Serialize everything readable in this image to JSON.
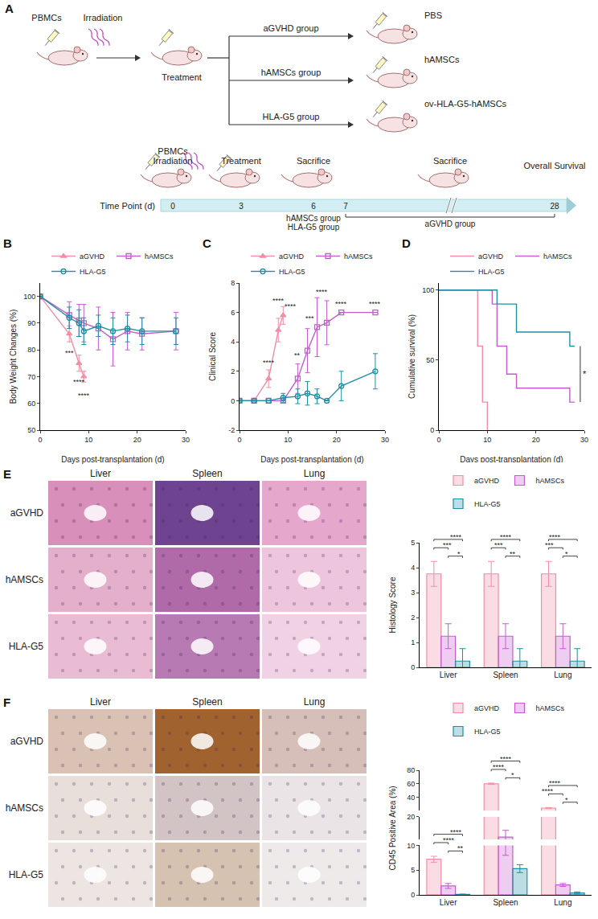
{
  "diagram": {
    "panel": "A",
    "start": [
      "PBMCs",
      "Irradiation"
    ],
    "treatment": "Treatment",
    "groups": [
      {
        "name": "aGVHD group",
        "agent": "PBS"
      },
      {
        "name": "hAMSCs group",
        "agent": "hAMSCs"
      },
      {
        "name": "HLA-G5 group",
        "agent": "ov-HLA-G5-hAMSCs"
      }
    ],
    "timeline": {
      "label": "Time Point (d)",
      "ticks": [
        0,
        3,
        6,
        7,
        28
      ],
      "above": [
        {
          "tick": 0,
          "texts": [
            "PBMCs",
            "Irradiation"
          ]
        },
        {
          "tick": 3,
          "texts": [
            "Treatment"
          ]
        },
        {
          "tick": 6,
          "texts": [
            "Sacrifice"
          ]
        },
        {
          "span": [
            7,
            28
          ],
          "texts": [
            "Sacrifice"
          ]
        },
        {
          "tick": 28,
          "texts": [
            "Overall Survival"
          ]
        }
      ],
      "below": [
        {
          "tick": 6,
          "texts": [
            "hAMSCs group",
            "HLA-G5 group"
          ]
        },
        {
          "span": [
            7,
            28
          ],
          "texts": [
            "aGVHD group"
          ]
        }
      ]
    }
  },
  "chart_data": [
    {
      "panel": "B",
      "type": "line",
      "xlabel": "Days post-transplantation (d)",
      "ylabel": "Body Weight Changes (%)",
      "xlim": [
        0,
        30
      ],
      "xticks": [
        0,
        10,
        20,
        30
      ],
      "ylim": [
        50,
        105
      ],
      "yticks": [
        50,
        60,
        70,
        80,
        90,
        100
      ],
      "grid": false,
      "legend": "top",
      "series": [
        {
          "name": "aGVHD",
          "color": "#f08ea4",
          "marker": "triangle",
          "x": [
            0,
            6,
            8,
            9
          ],
          "values": [
            100,
            86,
            75,
            70
          ],
          "errors": [
            0,
            3,
            3,
            2
          ]
        },
        {
          "name": "hAMSCs",
          "color": "#c45ccf",
          "marker": "square",
          "x": [
            0,
            6,
            8,
            9,
            12,
            15,
            18,
            21,
            28
          ],
          "values": [
            100,
            93,
            91,
            90,
            88,
            84,
            87,
            86,
            87
          ],
          "errors": [
            0,
            5,
            6,
            7,
            8,
            10,
            7,
            6,
            7
          ]
        },
        {
          "name": "HLA-G5",
          "color": "#1f8fa3",
          "marker": "circle",
          "x": [
            0,
            6,
            8,
            9,
            12,
            15,
            18,
            21,
            28
          ],
          "values": [
            100,
            92,
            90,
            87,
            89,
            87,
            88,
            87,
            87
          ],
          "errors": [
            0,
            4,
            5,
            5,
            4,
            5,
            5,
            5,
            5
          ]
        }
      ],
      "annotations": [
        {
          "x": 6,
          "y": 79,
          "text": "***"
        },
        {
          "x": 8,
          "y": 68,
          "text": "****"
        },
        {
          "x": 9,
          "y": 63,
          "text": "****"
        }
      ]
    },
    {
      "panel": "C",
      "type": "line",
      "xlabel": "Days post-transplantation (d)",
      "ylabel": "Clinical Score",
      "xlim": [
        0,
        30
      ],
      "xticks": [
        0,
        10,
        20,
        30
      ],
      "ylim": [
        -2,
        8
      ],
      "yticks": [
        -2,
        0,
        2,
        4,
        6,
        8
      ],
      "grid": false,
      "legend": "top",
      "series": [
        {
          "name": "aGVHD",
          "color": "#f08ea4",
          "marker": "triangle",
          "x": [
            0,
            3,
            6,
            8,
            9
          ],
          "values": [
            0,
            0,
            1.5,
            4.8,
            5.8
          ],
          "errors": [
            0,
            0,
            0.6,
            0.8,
            0.6
          ]
        },
        {
          "name": "hAMSCs",
          "color": "#c45ccf",
          "marker": "square",
          "x": [
            0,
            3,
            6,
            9,
            12,
            14,
            16,
            18,
            21,
            28
          ],
          "values": [
            0,
            0,
            0,
            0,
            1.5,
            3.4,
            5,
            5.3,
            6,
            6
          ],
          "errors": [
            0,
            0,
            0,
            0,
            1,
            1.5,
            2,
            1.5,
            0,
            0
          ]
        },
        {
          "name": "HLA-G5",
          "color": "#1f8fa3",
          "marker": "circle",
          "x": [
            0,
            3,
            6,
            9,
            12,
            14,
            16,
            18,
            21,
            28
          ],
          "values": [
            0,
            0,
            0,
            0.2,
            0.3,
            0.5,
            0.3,
            0,
            1,
            2
          ],
          "errors": [
            0,
            0,
            0,
            0.3,
            0.5,
            0.8,
            0.5,
            0,
            1,
            1.2
          ]
        }
      ],
      "annotations": [
        {
          "x": 6,
          "y": 2.6,
          "text": "****"
        },
        {
          "x": 8,
          "y": 6.8,
          "text": "****"
        },
        {
          "x": 10.5,
          "y": 6.4,
          "text": "****"
        },
        {
          "x": 12,
          "y": 3.1,
          "text": "**"
        },
        {
          "x": 14.5,
          "y": 5.6,
          "text": "***"
        },
        {
          "x": 17,
          "y": 7.4,
          "text": "****"
        },
        {
          "x": 21,
          "y": 6.6,
          "text": "****"
        },
        {
          "x": 28,
          "y": 6.6,
          "text": "****"
        }
      ]
    },
    {
      "panel": "D",
      "type": "step",
      "xlabel": "Days post-transplantation (d)",
      "ylabel": "Cumulative survival (%)",
      "xlim": [
        0,
        30
      ],
      "xticks": [
        0,
        10,
        20,
        30
      ],
      "ylim": [
        0,
        105
      ],
      "yticks": [
        0,
        50,
        100
      ],
      "grid": false,
      "legend": "top",
      "series": [
        {
          "name": "aGVHD",
          "color": "#f08ea4",
          "x": [
            0,
            8,
            9,
            10
          ],
          "values": [
            100,
            60,
            20,
            0
          ]
        },
        {
          "name": "hAMSCs",
          "color": "#c45ccf",
          "x": [
            0,
            11,
            12,
            14,
            16,
            27,
            28
          ],
          "values": [
            100,
            90,
            60,
            40,
            30,
            20,
            20
          ]
        },
        {
          "name": "HLA-G5",
          "color": "#1f8fa3",
          "x": [
            0,
            12,
            16,
            27,
            28
          ],
          "values": [
            100,
            90,
            70,
            60,
            60
          ]
        }
      ],
      "comparisons": [
        {
          "series": [
            "hAMSCs",
            "HLA-G5"
          ],
          "text": "*"
        }
      ]
    },
    {
      "type": "bar",
      "ylabel": "Histology Score",
      "categories": [
        "Liver",
        "Spleen",
        "Lung"
      ],
      "ylim": [
        0,
        5
      ],
      "yticks": [
        0,
        1,
        2,
        3,
        4,
        5
      ],
      "grid": false,
      "legend": "top",
      "series": [
        {
          "name": "aGVHD",
          "color": "#f08ea4",
          "values": [
            3.75,
            3.75,
            3.75
          ],
          "errors": [
            0.5,
            0.5,
            0.5
          ]
        },
        {
          "name": "hAMSCs",
          "color": "#c45ccf",
          "values": [
            1.25,
            1.25,
            1.25
          ],
          "errors": [
            0.5,
            0.5,
            0.5
          ]
        },
        {
          "name": "HLA-G5",
          "color": "#1f8fa3",
          "values": [
            0.25,
            0.25,
            0.25
          ],
          "errors": [
            0.5,
            0.5,
            0.5
          ]
        }
      ],
      "comparisons": [
        {
          "category": "Liver",
          "pair": [
            "aGVHD",
            "HLA-G5"
          ],
          "text": "****"
        },
        {
          "category": "Liver",
          "pair": [
            "aGVHD",
            "hAMSCs"
          ],
          "text": "***"
        },
        {
          "category": "Liver",
          "pair": [
            "hAMSCs",
            "HLA-G5"
          ],
          "text": "*"
        },
        {
          "category": "Spleen",
          "pair": [
            "aGVHD",
            "HLA-G5"
          ],
          "text": "****"
        },
        {
          "category": "Spleen",
          "pair": [
            "aGVHD",
            "hAMSCs"
          ],
          "text": "***"
        },
        {
          "category": "Spleen",
          "pair": [
            "hAMSCs",
            "HLA-G5"
          ],
          "text": "**"
        },
        {
          "category": "Lung",
          "pair": [
            "aGVHD",
            "HLA-G5"
          ],
          "text": "****"
        },
        {
          "category": "Lung",
          "pair": [
            "aGVHD",
            "hAMSCs"
          ],
          "text": "***"
        },
        {
          "category": "Lung",
          "pair": [
            "hAMSCs",
            "HLA-G5"
          ],
          "text": "*"
        }
      ]
    },
    {
      "type": "bar",
      "ylabel": "CD45 Positive Area (%)",
      "categories": [
        "Liver",
        "Spleen",
        "Lung"
      ],
      "y_segments": [
        {
          "ylim": [
            0,
            10
          ],
          "yticks": [
            0,
            5,
            10
          ]
        },
        {
          "ylim": [
            10,
            20
          ],
          "yticks": [
            20
          ]
        },
        {
          "ylim": [
            20,
            80
          ],
          "yticks": [
            40,
            60,
            80
          ]
        }
      ],
      "grid": false,
      "legend": "top",
      "series": [
        {
          "name": "aGVHD",
          "color": "#f08ea4",
          "values": [
            7.2,
            60,
            24
          ],
          "errors": [
            0.6,
            1,
            0.8
          ]
        },
        {
          "name": "hAMSCs",
          "color": "#c45ccf",
          "values": [
            1.8,
            11,
            2
          ],
          "errors": [
            0.5,
            3,
            0.3
          ]
        },
        {
          "name": "HLA-G5",
          "color": "#1f8fa3",
          "values": [
            0.1,
            5.3,
            0.4
          ],
          "errors": [
            0.05,
            0.8,
            0.2
          ]
        }
      ],
      "comparisons": [
        {
          "category": "Liver",
          "pair": [
            "aGVHD",
            "HLA-G5"
          ],
          "text": "****"
        },
        {
          "category": "Liver",
          "pair": [
            "aGVHD",
            "hAMSCs"
          ],
          "text": "****"
        },
        {
          "category": "Liver",
          "pair": [
            "hAMSCs",
            "HLA-G5"
          ],
          "text": "**"
        },
        {
          "category": "Spleen",
          "pair": [
            "aGVHD",
            "HLA-G5"
          ],
          "text": "****"
        },
        {
          "category": "Spleen",
          "pair": [
            "aGVHD",
            "hAMSCs"
          ],
          "text": "****"
        },
        {
          "category": "Spleen",
          "pair": [
            "hAMSCs",
            "HLA-G5"
          ],
          "text": "*"
        },
        {
          "category": "Lung",
          "pair": [
            "aGVHD",
            "HLA-G5"
          ],
          "text": "****"
        },
        {
          "category": "Lung",
          "pair": [
            "aGVHD",
            "hAMSCs"
          ],
          "text": "****"
        },
        {
          "category": "Lung",
          "pair": [
            "hAMSCs",
            "HLA-G5"
          ],
          "text": "*"
        }
      ]
    }
  ],
  "image_grids": [
    {
      "panel": "E",
      "columns": [
        "Liver",
        "Spleen",
        "Lung"
      ],
      "rows": [
        "aGVHD",
        "hAMSCs",
        "HLA-G5"
      ]
    },
    {
      "panel": "F",
      "columns": [
        "Liver",
        "Spleen",
        "Lung"
      ],
      "rows": [
        "aGVHD",
        "hAMSCs",
        "HLA-G5"
      ]
    }
  ]
}
